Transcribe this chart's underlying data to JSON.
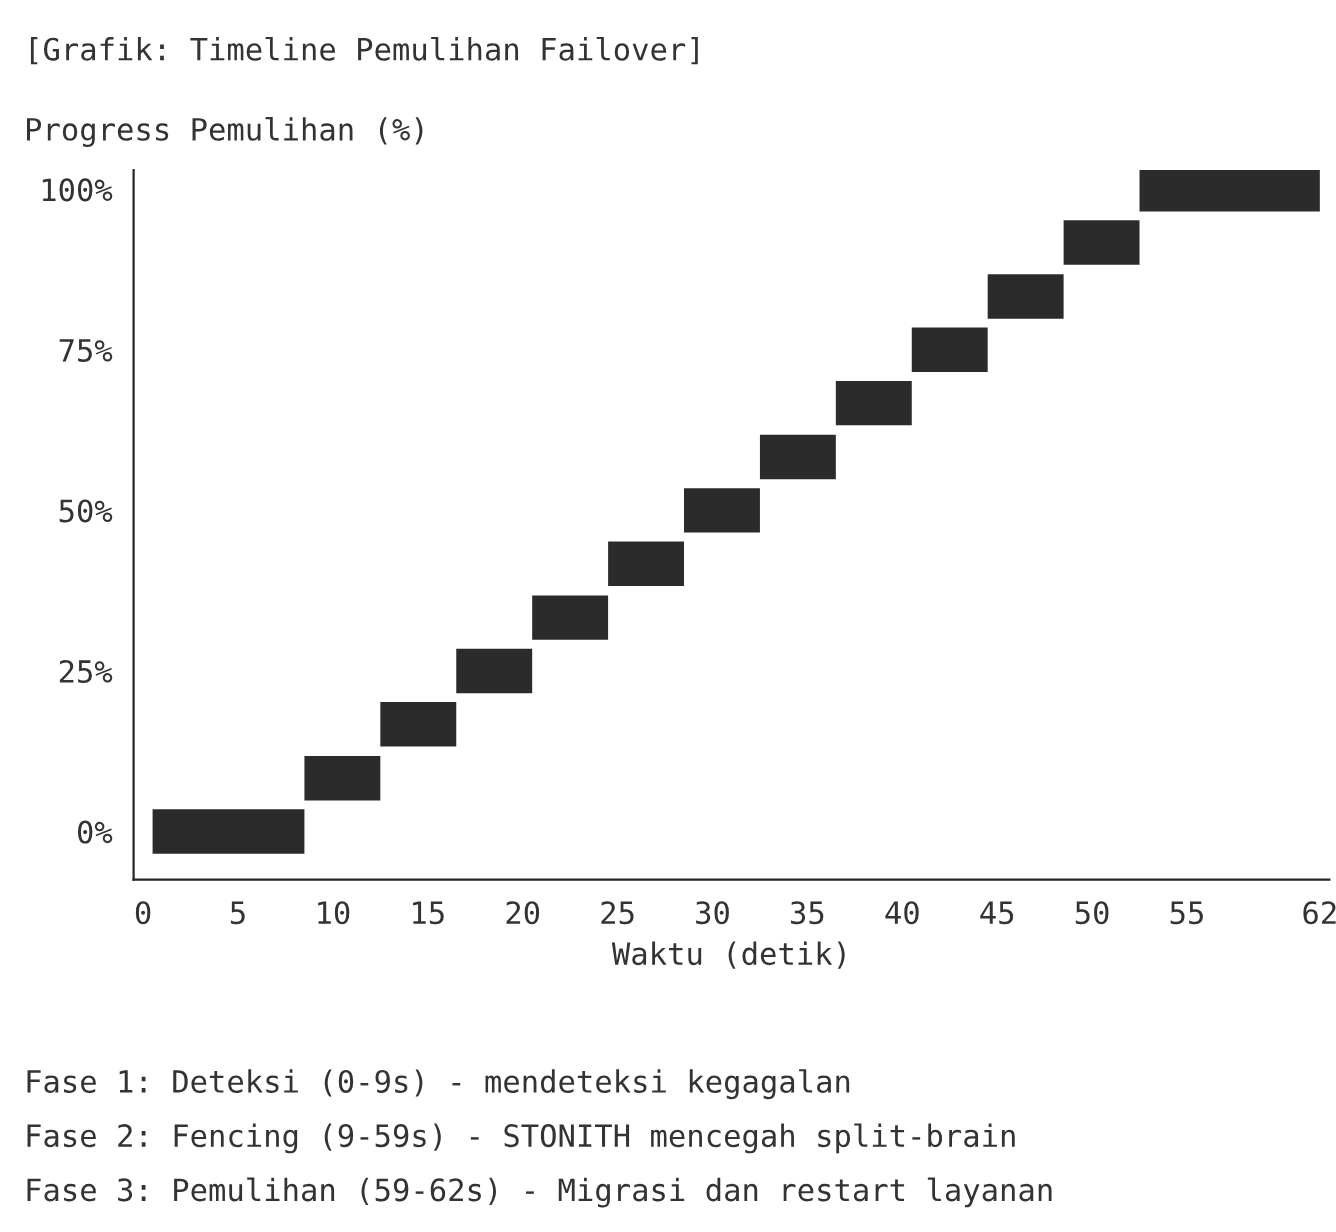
{
  "chart_data": {
    "type": "line",
    "title": "[Grafik: Timeline Pemulihan Failover]",
    "ylabel": "Progress Pemulihan (%)",
    "xlabel": "Waktu (detik)",
    "series": [
      {
        "color": "#2b2b2b",
        "x": [
          0.5,
          8.5
        ],
        "values": [
          0,
          0
        ]
      },
      {
        "color": "#2b2b2b",
        "x": [
          8.5,
          12.5
        ],
        "values": [
          8.3,
          8.3
        ]
      },
      {
        "color": "#2b2b2b",
        "x": [
          12.5,
          16.5
        ],
        "values": [
          16.7,
          16.7
        ]
      },
      {
        "color": "#2b2b2b",
        "x": [
          16.5,
          20.5
        ],
        "values": [
          25,
          25
        ]
      },
      {
        "color": "#2b2b2b",
        "x": [
          20.5,
          24.5
        ],
        "values": [
          33.3,
          33.3
        ]
      },
      {
        "color": "#2b2b2b",
        "x": [
          24.5,
          28.5
        ],
        "values": [
          41.7,
          41.7
        ]
      },
      {
        "color": "#2b2b2b",
        "x": [
          28.5,
          32.5
        ],
        "values": [
          50,
          50
        ]
      },
      {
        "color": "#2b2b2b",
        "x": [
          32.5,
          36.5
        ],
        "values": [
          58.3,
          58.3
        ]
      },
      {
        "color": "#2b2b2b",
        "x": [
          36.5,
          40.5
        ],
        "values": [
          66.7,
          66.7
        ]
      },
      {
        "color": "#2b2b2b",
        "x": [
          40.5,
          44.5
        ],
        "values": [
          75,
          75
        ]
      },
      {
        "color": "#2b2b2b",
        "x": [
          44.5,
          48.5
        ],
        "values": [
          83.3,
          83.3
        ]
      },
      {
        "color": "#2b2b2b",
        "x": [
          48.5,
          52.5
        ],
        "values": [
          91.7,
          91.7
        ]
      },
      {
        "color": "#2b2b2b",
        "x": [
          52.5,
          62
        ],
        "values": [
          100,
          100
        ]
      }
    ],
    "xlim": [
      -0.5,
      62.5
    ],
    "xticks": [
      0,
      5,
      10,
      15,
      20,
      25,
      30,
      35,
      40,
      45,
      50,
      55,
      62
    ],
    "ylim": [
      -7.5,
      103
    ],
    "yticks": [
      {
        "value": 0,
        "label": "0%"
      },
      {
        "value": 25,
        "label": "25%"
      },
      {
        "value": 50,
        "label": "50%"
      },
      {
        "value": 75,
        "label": "75%"
      },
      {
        "value": 100,
        "label": "100%"
      }
    ],
    "grid": false,
    "legend": false,
    "annotations": [
      "Fase 1: Deteksi (0-9s) - mendeteksi kegagalan",
      "Fase 2: Fencing (9-59s) - STONITH mencegah split-brain",
      "Fase 3: Pemulihan (59-62s) - Migrasi dan restart layanan"
    ]
  }
}
